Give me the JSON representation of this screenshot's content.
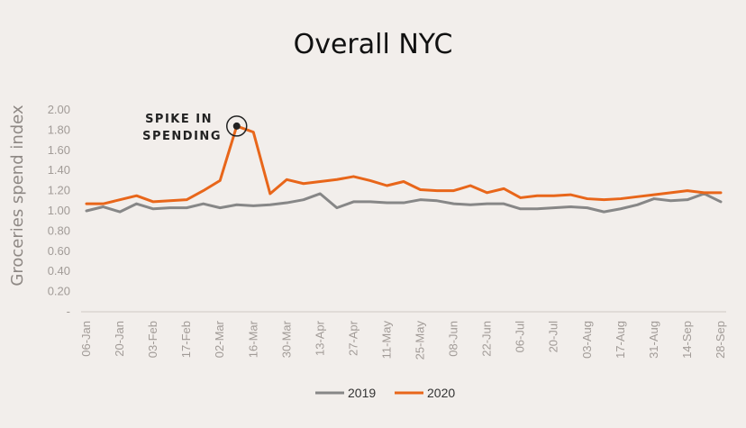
{
  "chart_data": {
    "type": "line",
    "title": "Overall NYC",
    "xlabel": "",
    "ylabel": "Groceries spend index",
    "ylim": [
      0,
      2.0
    ],
    "y_ticks": [
      "2.00",
      "1.80",
      "1.60",
      "1.40",
      "1.20",
      "1.00",
      "0.80",
      "0.60",
      "0.40",
      "0.20",
      "-"
    ],
    "x": [
      "06-Jan",
      "13-Jan",
      "20-Jan",
      "27-Jan",
      "03-Feb",
      "10-Feb",
      "17-Feb",
      "24-Feb",
      "02-Mar",
      "09-Mar",
      "16-Mar",
      "23-Mar",
      "30-Mar",
      "06-Apr",
      "13-Apr",
      "20-Apr",
      "27-Apr",
      "04-May",
      "11-May",
      "18-May",
      "25-May",
      "01-Jun",
      "08-Jun",
      "15-Jun",
      "22-Jun",
      "29-Jun",
      "06-Jul",
      "13-Jul",
      "20-Jul",
      "27-Jul",
      "03-Aug",
      "10-Aug",
      "17-Aug",
      "24-Aug",
      "31-Aug",
      "07-Sep",
      "14-Sep",
      "21-Sep",
      "28-Sep"
    ],
    "x_tick_labels": [
      "06-Jan",
      "20-Jan",
      "03-Feb",
      "17-Feb",
      "02-Mar",
      "16-Mar",
      "30-Mar",
      "13-Apr",
      "27-Apr",
      "11-May",
      "25-May",
      "08-Jun",
      "22-Jun",
      "06-Jul",
      "20-Jul",
      "03-Aug",
      "17-Aug",
      "31-Aug",
      "14-Sep",
      "28-Sep"
    ],
    "series": [
      {
        "name": "2019",
        "color": "#878787",
        "values": [
          1.0,
          1.04,
          0.99,
          1.07,
          1.02,
          1.03,
          1.03,
          1.07,
          1.03,
          1.06,
          1.05,
          1.06,
          1.08,
          1.11,
          1.17,
          1.03,
          1.09,
          1.09,
          1.08,
          1.08,
          1.11,
          1.1,
          1.07,
          1.06,
          1.07,
          1.07,
          1.02,
          1.02,
          1.03,
          1.04,
          1.03,
          0.99,
          1.02,
          1.06,
          1.12,
          1.1,
          1.11,
          1.17,
          1.09
        ]
      },
      {
        "name": "2020",
        "color": "#e8661a",
        "values": [
          1.07,
          1.07,
          1.11,
          1.15,
          1.09,
          1.1,
          1.11,
          1.2,
          1.3,
          1.84,
          1.78,
          1.17,
          1.31,
          1.27,
          1.29,
          1.31,
          1.34,
          1.3,
          1.25,
          1.29,
          1.21,
          1.2,
          1.2,
          1.25,
          1.18,
          1.22,
          1.13,
          1.15,
          1.15,
          1.16,
          1.12,
          1.11,
          1.12,
          1.14,
          1.16,
          1.18,
          1.2,
          1.18,
          1.18
        ]
      }
    ],
    "annotation": {
      "text_line1": "SPIKE IN",
      "text_line2": "SPENDING",
      "x": "09-Mar",
      "y": 1.84
    },
    "grid": false,
    "legend": "bottom-center"
  }
}
